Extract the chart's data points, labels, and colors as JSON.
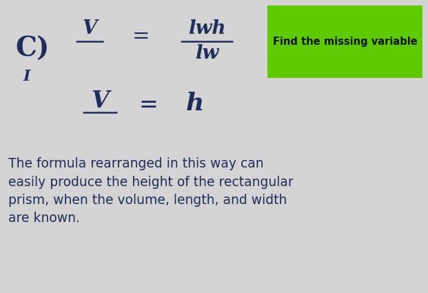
{
  "bg_color": "#d4d4d4",
  "text_color": "#1e2d5a",
  "green_box_color": "#5ecb00",
  "green_box_text": "Find the missing variable",
  "green_box_text_color": "#111111",
  "body_text": "The formula rearranged in this way can\neasily produce the height of the rectangular\nprism, when the volume, length, and width\nare known.",
  "body_text_color": "#1e2d5a",
  "label_c": "C)",
  "label_i": "I",
  "formula1_left_num": "V",
  "formula1_eq": "=",
  "formula1_right_num": "lwh",
  "formula1_right_den": "lw",
  "formula2_left_num": "V",
  "formula2_eq_sign": "=",
  "formula2_h": "h",
  "fig_width": 6.21,
  "fig_height": 4.25,
  "dpi": 100
}
